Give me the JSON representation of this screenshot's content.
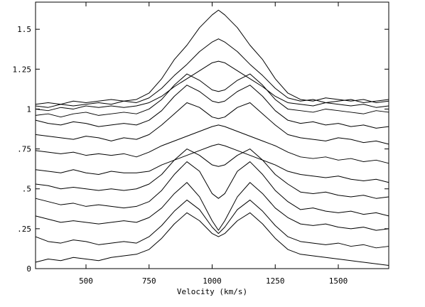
{
  "chart_data": {
    "type": "line",
    "x_label": "Velocity (km/s)",
    "color": "#000000",
    "xlim": [
      300,
      1700
    ],
    "ylim": [
      0,
      1.67
    ],
    "xticks": [
      500,
      750,
      1000,
      1250,
      1500
    ],
    "yticks": [
      0,
      {
        "value": 0.25,
        "label": ".25"
      },
      {
        "value": 0.5,
        "label": ".5"
      },
      {
        "value": 0.75,
        "label": ".75"
      },
      1,
      1.25,
      1.5
    ],
    "x": [
      300,
      350,
      400,
      450,
      500,
      550,
      600,
      650,
      700,
      750,
      800,
      850,
      900,
      950,
      1000,
      1025,
      1050,
      1100,
      1150,
      1200,
      1250,
      1300,
      1350,
      1400,
      1450,
      1500,
      1550,
      1600,
      1650,
      1700
    ],
    "series": [
      {
        "values": [
          1.03,
          1.04,
          1.03,
          1.05,
          1.04,
          1.05,
          1.06,
          1.05,
          1.06,
          1.1,
          1.19,
          1.31,
          1.4,
          1.51,
          1.59,
          1.62,
          1.59,
          1.51,
          1.4,
          1.31,
          1.19,
          1.1,
          1.06,
          1.05,
          1.07,
          1.06,
          1.05,
          1.06,
          1.04,
          1.05
        ]
      },
      {
        "values": [
          1.02,
          1.01,
          1.03,
          1.02,
          1.03,
          1.04,
          1.03,
          1.05,
          1.04,
          1.07,
          1.13,
          1.21,
          1.28,
          1.36,
          1.42,
          1.44,
          1.42,
          1.36,
          1.28,
          1.21,
          1.13,
          1.07,
          1.05,
          1.06,
          1.04,
          1.05,
          1.06,
          1.04,
          1.05,
          1.06
        ]
      },
      {
        "values": [
          1.0,
          0.99,
          1.01,
          1.0,
          1.02,
          1.01,
          1.02,
          1.01,
          1.02,
          1.04,
          1.08,
          1.14,
          1.19,
          1.24,
          1.29,
          1.3,
          1.29,
          1.24,
          1.19,
          1.14,
          1.08,
          1.04,
          1.03,
          1.02,
          1.04,
          1.03,
          1.02,
          1.03,
          1.01,
          1.02
        ]
      },
      {
        "values": [
          0.96,
          0.97,
          0.95,
          0.97,
          0.98,
          0.96,
          0.97,
          0.98,
          0.97,
          1.0,
          1.06,
          1.15,
          1.22,
          1.18,
          1.12,
          1.11,
          1.12,
          1.18,
          1.22,
          1.15,
          1.06,
          1.0,
          0.99,
          0.98,
          1.0,
          0.99,
          0.98,
          0.97,
          0.99,
          0.98
        ]
      },
      {
        "values": [
          0.93,
          0.91,
          0.9,
          0.92,
          0.91,
          0.89,
          0.9,
          0.91,
          0.9,
          0.93,
          0.99,
          1.08,
          1.15,
          1.11,
          1.05,
          1.04,
          1.05,
          1.11,
          1.15,
          1.08,
          0.99,
          0.93,
          0.91,
          0.92,
          0.9,
          0.91,
          0.89,
          0.9,
          0.88,
          0.89
        ]
      },
      {
        "values": [
          0.84,
          0.83,
          0.82,
          0.81,
          0.83,
          0.82,
          0.8,
          0.82,
          0.81,
          0.84,
          0.9,
          0.97,
          1.04,
          1.01,
          0.95,
          0.94,
          0.95,
          1.01,
          1.04,
          0.97,
          0.9,
          0.84,
          0.82,
          0.81,
          0.8,
          0.82,
          0.81,
          0.79,
          0.8,
          0.78
        ]
      },
      {
        "values": [
          0.74,
          0.73,
          0.72,
          0.73,
          0.71,
          0.72,
          0.71,
          0.72,
          0.7,
          0.73,
          0.77,
          0.8,
          0.83,
          0.86,
          0.89,
          0.9,
          0.89,
          0.86,
          0.83,
          0.8,
          0.77,
          0.73,
          0.7,
          0.69,
          0.7,
          0.68,
          0.69,
          0.67,
          0.68,
          0.66
        ]
      },
      {
        "values": [
          0.62,
          0.61,
          0.6,
          0.62,
          0.6,
          0.59,
          0.61,
          0.6,
          0.6,
          0.61,
          0.65,
          0.68,
          0.71,
          0.74,
          0.77,
          0.78,
          0.77,
          0.74,
          0.71,
          0.68,
          0.65,
          0.61,
          0.59,
          0.58,
          0.57,
          0.58,
          0.56,
          0.55,
          0.56,
          0.54
        ]
      },
      {
        "values": [
          0.53,
          0.52,
          0.5,
          0.51,
          0.5,
          0.49,
          0.5,
          0.49,
          0.5,
          0.53,
          0.59,
          0.68,
          0.75,
          0.71,
          0.65,
          0.64,
          0.65,
          0.71,
          0.75,
          0.68,
          0.59,
          0.53,
          0.48,
          0.47,
          0.48,
          0.46,
          0.45,
          0.46,
          0.44,
          0.45
        ]
      },
      {
        "values": [
          0.44,
          0.42,
          0.4,
          0.41,
          0.39,
          0.4,
          0.39,
          0.38,
          0.39,
          0.42,
          0.49,
          0.59,
          0.67,
          0.61,
          0.47,
          0.44,
          0.47,
          0.61,
          0.67,
          0.59,
          0.49,
          0.42,
          0.37,
          0.38,
          0.36,
          0.35,
          0.36,
          0.34,
          0.35,
          0.33
        ]
      },
      {
        "values": [
          0.33,
          0.31,
          0.29,
          0.3,
          0.29,
          0.28,
          0.29,
          0.3,
          0.29,
          0.32,
          0.38,
          0.47,
          0.54,
          0.45,
          0.3,
          0.24,
          0.3,
          0.45,
          0.54,
          0.47,
          0.38,
          0.32,
          0.28,
          0.27,
          0.28,
          0.26,
          0.25,
          0.26,
          0.24,
          0.25
        ]
      },
      {
        "values": [
          0.2,
          0.17,
          0.16,
          0.18,
          0.17,
          0.15,
          0.16,
          0.17,
          0.16,
          0.2,
          0.27,
          0.36,
          0.43,
          0.37,
          0.26,
          0.22,
          0.26,
          0.37,
          0.43,
          0.36,
          0.27,
          0.2,
          0.17,
          0.16,
          0.15,
          0.16,
          0.14,
          0.15,
          0.13,
          0.14
        ]
      },
      {
        "values": [
          0.04,
          0.06,
          0.05,
          0.07,
          0.06,
          0.05,
          0.07,
          0.08,
          0.09,
          0.12,
          0.19,
          0.28,
          0.35,
          0.3,
          0.22,
          0.2,
          0.22,
          0.3,
          0.35,
          0.28,
          0.19,
          0.12,
          0.09,
          0.08,
          0.07,
          0.06,
          0.05,
          0.04,
          0.03,
          0.02
        ]
      }
    ]
  }
}
